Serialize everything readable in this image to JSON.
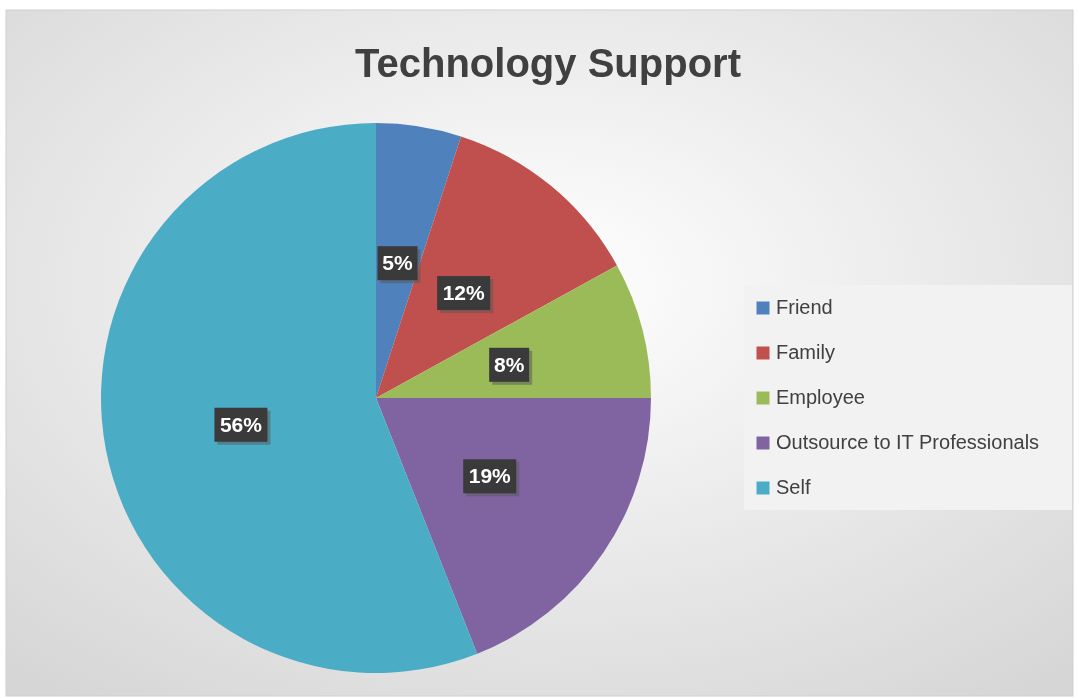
{
  "chart_data": {
    "type": "pie",
    "title": "Technology Support",
    "categories": [
      "Friend",
      "Family",
      "Employee",
      "Outsource to IT Professionals",
      "Self"
    ],
    "values": [
      5,
      12,
      8,
      19,
      56
    ],
    "colors": [
      "#4f81bd",
      "#c0504d",
      "#9bbb59",
      "#8064a2",
      "#4bacc6"
    ],
    "value_labels": [
      "5%",
      "12%",
      "8%",
      "19%",
      "56%"
    ],
    "legend": "right"
  }
}
